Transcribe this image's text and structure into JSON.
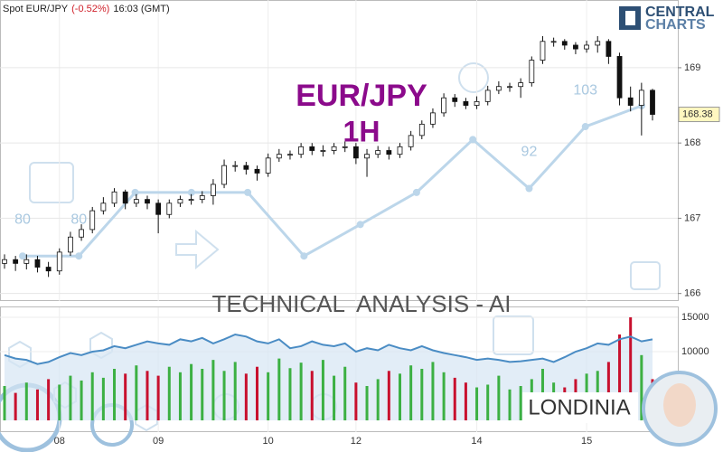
{
  "header": {
    "instrument": "Spot EUR/JPY",
    "change": "(-0.52%)",
    "time": "16:03 (GMT)"
  },
  "logo": {
    "line1": "CENTRAL",
    "line2": "CHARTS"
  },
  "overlay": {
    "symbol": "EUR/JPY",
    "timeframe": "1H",
    "banner": "TECHNICAL  ANALYSIS - AI",
    "brand": "LONDINIA"
  },
  "chart_data": [
    {
      "type": "candlestick",
      "up_color": "#ffffff",
      "down_color": "#111111",
      "ylim": [
        165.9,
        169.9
      ],
      "yticks": [
        166,
        167,
        168,
        169
      ],
      "grid": true,
      "open": [
        166.4,
        166.45,
        166.4,
        166.45,
        166.35,
        166.3,
        166.55,
        166.75,
        166.85,
        167.1,
        167.2,
        167.35,
        167.2,
        167.25,
        167.2,
        167.05,
        167.2,
        167.25,
        167.25,
        167.3,
        167.45,
        167.7,
        167.7,
        167.65,
        167.6,
        167.8,
        167.85,
        167.85,
        167.95,
        167.9,
        167.9,
        167.95,
        167.95,
        167.8,
        167.85,
        167.9,
        167.85,
        167.95,
        168.1,
        168.25,
        168.4,
        168.6,
        168.55,
        168.5,
        168.55,
        168.7,
        168.75,
        168.75,
        168.8,
        169.1,
        169.35,
        169.35,
        169.3,
        169.25,
        169.3,
        169.35,
        169.15,
        168.6,
        168.5,
        168.7
      ],
      "high": [
        166.52,
        166.5,
        166.52,
        166.5,
        166.42,
        166.6,
        166.82,
        166.92,
        167.15,
        167.28,
        167.4,
        167.38,
        167.32,
        167.3,
        167.25,
        167.25,
        167.3,
        167.32,
        167.36,
        167.52,
        167.78,
        167.76,
        167.75,
        167.7,
        167.86,
        167.92,
        167.9,
        168.0,
        168.0,
        167.97,
        168.0,
        168.02,
        168.0,
        167.92,
        167.96,
        167.95,
        168.0,
        168.16,
        168.3,
        168.46,
        168.66,
        168.65,
        168.6,
        168.62,
        168.76,
        168.82,
        168.8,
        168.86,
        169.15,
        169.42,
        169.4,
        169.38,
        169.34,
        169.36,
        169.42,
        169.38,
        169.2,
        168.75,
        168.8,
        168.72
      ],
      "low": [
        166.33,
        166.3,
        166.32,
        166.28,
        166.22,
        166.25,
        166.5,
        166.7,
        166.8,
        167.05,
        167.15,
        167.12,
        167.15,
        167.12,
        166.8,
        167.0,
        167.15,
        167.18,
        167.2,
        167.18,
        167.4,
        167.62,
        167.58,
        167.5,
        167.55,
        167.75,
        167.78,
        167.8,
        167.84,
        167.82,
        167.85,
        167.88,
        167.72,
        167.55,
        167.8,
        167.78,
        167.8,
        167.9,
        168.05,
        168.2,
        168.35,
        168.48,
        168.45,
        168.45,
        168.5,
        168.65,
        168.68,
        168.6,
        168.75,
        169.05,
        169.28,
        169.24,
        169.18,
        169.2,
        169.2,
        169.05,
        168.5,
        168.42,
        168.1,
        168.3
      ],
      "close": [
        166.45,
        166.4,
        166.45,
        166.35,
        166.3,
        166.55,
        166.75,
        166.85,
        167.1,
        167.2,
        167.35,
        167.2,
        167.25,
        167.2,
        167.05,
        167.2,
        167.25,
        167.25,
        167.3,
        167.45,
        167.7,
        167.7,
        167.65,
        167.6,
        167.8,
        167.85,
        167.85,
        167.95,
        167.9,
        167.9,
        167.95,
        167.95,
        167.8,
        167.85,
        167.9,
        167.85,
        167.95,
        168.1,
        168.25,
        168.4,
        168.6,
        168.55,
        168.5,
        168.55,
        168.7,
        168.75,
        168.75,
        168.8,
        169.1,
        169.35,
        169.35,
        169.3,
        169.25,
        169.3,
        169.35,
        169.15,
        168.6,
        168.5,
        168.7,
        168.38
      ],
      "score": {
        "color": "#bcd6ea",
        "y2lim": [
          72,
          125.5
        ],
        "values": [
          80,
          80,
          91.3,
          91.3,
          91.3,
          80,
          85.6,
          91.3,
          100.7,
          92,
          103,
          106.7
        ],
        "value_labels": [
          "80",
          "80",
          null,
          null,
          null,
          null,
          null,
          null,
          null,
          "92",
          "103",
          null
        ]
      }
    },
    {
      "type": "bar",
      "up_color": "#3cb043",
      "down_color": "#c8102e",
      "ylim": [
        0,
        16450
      ],
      "yticks": [
        10000,
        15000
      ],
      "categories": [
        null,
        null,
        null,
        null,
        null,
        "08",
        null,
        null,
        null,
        null,
        null,
        null,
        null,
        null,
        "09",
        null,
        null,
        null,
        null,
        null,
        null,
        null,
        null,
        null,
        "10",
        null,
        null,
        null,
        null,
        null,
        null,
        null,
        "12",
        null,
        null,
        null,
        null,
        null,
        null,
        null,
        null,
        null,
        null,
        "14",
        null,
        null,
        null,
        null,
        null,
        null,
        null,
        null,
        null,
        "15",
        null,
        null,
        null,
        null,
        null,
        null
      ],
      "values": [
        5000,
        4000,
        5500,
        4500,
        6000,
        5200,
        6500,
        5800,
        7000,
        6200,
        7500,
        6800,
        8000,
        7200,
        6500,
        7800,
        7000,
        8200,
        7500,
        8800,
        7200,
        8500,
        6800,
        7800,
        7000,
        9000,
        7600,
        8400,
        7200,
        8800,
        6500,
        7800,
        5500,
        5000,
        6000,
        7200,
        6800,
        8000,
        7500,
        8500,
        7000,
        6200,
        5500,
        4800,
        5200,
        6500,
        4500,
        5000,
        6000,
        7500,
        5500,
        4800,
        6000,
        6800,
        7200,
        8500,
        12500,
        15000,
        9500,
        6000
      ],
      "line": {
        "color": "#4a8cc4",
        "area_color": "#d6e6f3",
        "values": [
          9500,
          9000,
          8800,
          8200,
          8500,
          9200,
          9800,
          9500,
          10000,
          10200,
          10800,
          10500,
          11000,
          11500,
          11200,
          11000,
          11800,
          11500,
          12000,
          11200,
          11800,
          12500,
          12200,
          11500,
          11200,
          11800,
          10500,
          10800,
          11500,
          11000,
          10800,
          11200,
          10000,
          10500,
          10200,
          11000,
          10500,
          10200,
          10800,
          10200,
          9800,
          9500,
          9200,
          8800,
          9000,
          8800,
          8500,
          8600,
          8800,
          9000,
          8500,
          9200,
          10000,
          10500,
          11200,
          11000,
          11800,
          12200,
          11500,
          11800
        ]
      }
    }
  ]
}
